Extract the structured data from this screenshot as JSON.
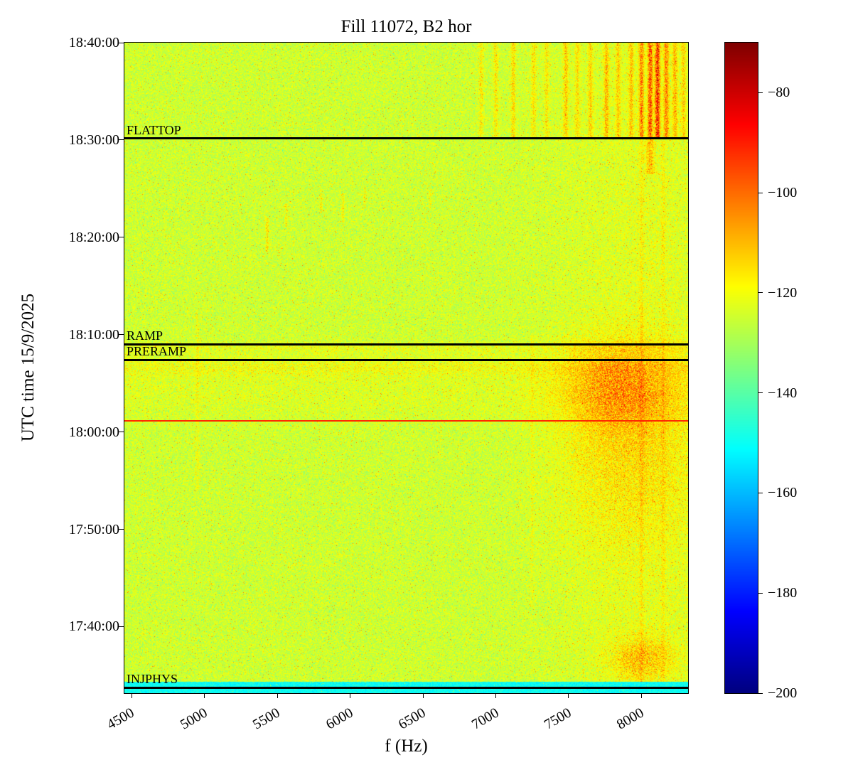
{
  "chart_data": {
    "type": "heatmap",
    "title": "Fill 11072, B2 hor",
    "xlabel": "f (Hz)",
    "ylabel": "UTC time 15/9/2025",
    "x_range": [
      4450,
      8320
    ],
    "x_ticks": [
      4500,
      5000,
      5500,
      6000,
      6500,
      7000,
      7500,
      8000
    ],
    "y_min": "17:33:10",
    "y_max": "18:40:00",
    "y_ticks": [
      "18:40:00",
      "18:30:00",
      "18:20:00",
      "18:10:00",
      "18:00:00",
      "17:50:00",
      "17:40:00"
    ],
    "colorbar": {
      "colormap": "jet",
      "vmin": -200,
      "vmax": -70,
      "ticks": [
        {
          "value": -80,
          "label": "−80"
        },
        {
          "value": -100,
          "label": "−100"
        },
        {
          "value": -120,
          "label": "−120"
        },
        {
          "value": -140,
          "label": "−140"
        },
        {
          "value": -160,
          "label": "−160"
        },
        {
          "value": -180,
          "label": "−180"
        },
        {
          "value": -200,
          "label": "−200"
        }
      ]
    },
    "annotations": [
      {
        "label": "FLATTOP",
        "time": "18:30:10",
        "color": "#000000",
        "width": 3
      },
      {
        "label": "RAMP",
        "time": "18:09:00",
        "color": "#000000",
        "width": 3
      },
      {
        "label": "PRERAMP",
        "time": "18:07:25",
        "color": "#000000",
        "width": 3
      },
      {
        "label": "INJPHYS",
        "time": "17:33:45",
        "color": "#000000",
        "width": 3
      },
      {
        "label": "",
        "time": "18:01:10",
        "color": "#ff2a00",
        "width": 2
      }
    ],
    "features": {
      "base": {
        "level_db": -125,
        "noise_db": 6.5,
        "speckle_up_prob": 0.035,
        "speckle_up_amp": 20,
        "speckle_down_prob": 0.03,
        "speckle_down_amp": 16
      },
      "bottom_band": {
        "t_end": "17:34:20",
        "level_db": -150,
        "noise_db": 5
      },
      "top_streaks": {
        "t_start": "18:30:10",
        "width_hz": 12,
        "streaks": [
          {
            "f": 6900,
            "amp": 8
          },
          {
            "f": 7000,
            "amp": 10
          },
          {
            "f": 7120,
            "amp": 12
          },
          {
            "f": 7260,
            "amp": 10
          },
          {
            "f": 7350,
            "amp": 9
          },
          {
            "f": 7480,
            "amp": 14
          },
          {
            "f": 7560,
            "amp": 10
          },
          {
            "f": 7650,
            "amp": 12
          },
          {
            "f": 7760,
            "amp": 16
          },
          {
            "f": 7840,
            "amp": 12
          },
          {
            "f": 7930,
            "amp": 14
          },
          {
            "f": 8000,
            "amp": 24
          },
          {
            "f": 8060,
            "amp": 32
          },
          {
            "f": 8110,
            "amp": 38
          },
          {
            "f": 8170,
            "amp": 24
          },
          {
            "f": 8230,
            "amp": 16
          },
          {
            "f": 8290,
            "amp": 12
          }
        ]
      },
      "vertical_streaks": [
        {
          "f": 4953,
          "amp": 5,
          "t_start": "17:54:00",
          "t_end": "18:12:00",
          "width_hz": 9
        },
        {
          "f": 8000,
          "amp": 6,
          "t_start": "17:33:30",
          "t_end": "18:30:00",
          "width_hz": 10
        },
        {
          "f": 8150,
          "amp": 5,
          "t_start": "17:33:30",
          "t_end": "18:30:00",
          "width_hz": 10
        },
        {
          "f": 8060,
          "amp": 14,
          "t_start": "18:26:30",
          "t_end": "18:30:10",
          "width_hz": 20
        },
        {
          "f": 7250,
          "amp": 4,
          "t_start": "17:42:00",
          "t_end": "18:10:00",
          "width_hz": 8
        },
        {
          "f": 5430,
          "amp": 11,
          "t_start": "18:18:30",
          "t_end": "18:22:00",
          "width_hz": 7
        },
        {
          "f": 5560,
          "amp": 8,
          "t_start": "18:21:00",
          "t_end": "18:23:30",
          "width_hz": 6
        },
        {
          "f": 5800,
          "amp": 8,
          "t_start": "18:22:30",
          "t_end": "18:24:30",
          "width_hz": 6
        },
        {
          "f": 5950,
          "amp": 9,
          "t_start": "18:21:30",
          "t_end": "18:24:30",
          "width_hz": 6
        },
        {
          "f": 6100,
          "amp": 8,
          "t_start": "18:23:00",
          "t_end": "18:25:00",
          "width_hz": 6
        },
        {
          "f": 6550,
          "amp": 6,
          "t_start": "18:23:00",
          "t_end": "18:25:00",
          "width_hz": 6
        }
      ],
      "blobs": [
        {
          "f_center": 7850,
          "f_sigma": 260,
          "t_center": "18:04:30",
          "t_sigma_min": 3.2,
          "amp": 15
        },
        {
          "f_center": 7900,
          "f_sigma": 320,
          "t_center": "17:57:00",
          "t_sigma_min": 6.0,
          "amp": 8
        },
        {
          "f_center": 8000,
          "f_sigma": 150,
          "t_center": "17:36:40",
          "t_sigma_min": 1.6,
          "amp": 13
        },
        {
          "f_center": 8050,
          "f_sigma": 420,
          "t_center": "18:00:00",
          "t_sigma_min": 45.0,
          "amp": 3.5
        }
      ],
      "rows": [
        {
          "t_center": "18:06:40",
          "t_sigma_min": 0.7,
          "amp": 5
        },
        {
          "t_center": "18:04:00",
          "t_sigma_min": 1.8,
          "amp": 2.5
        },
        {
          "t_center": "18:08:40",
          "t_sigma_min": 0.4,
          "amp": 4
        }
      ]
    }
  }
}
